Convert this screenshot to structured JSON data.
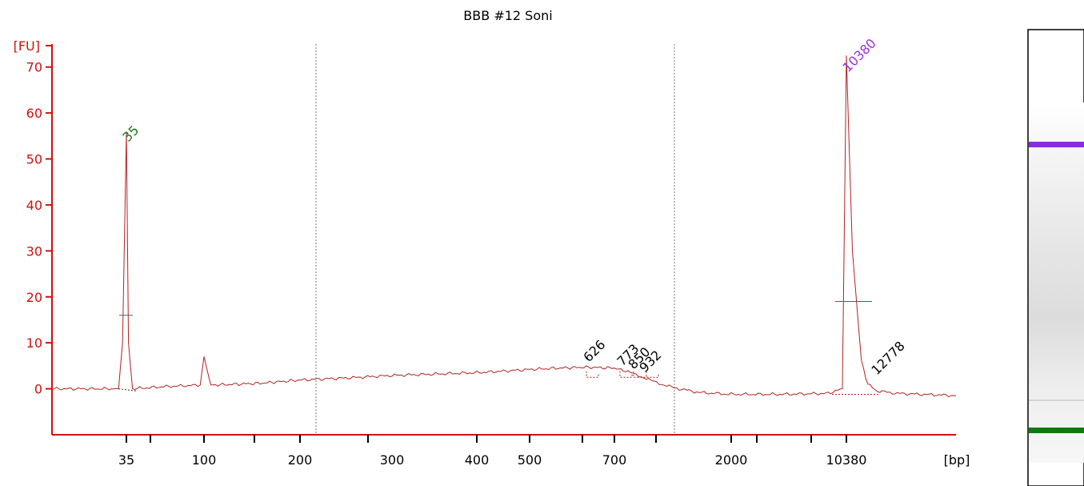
{
  "chart_data": {
    "type": "line",
    "title": "BBB #12 Soni",
    "ylabel": "[FU]",
    "xlabel": "[bp]",
    "ylim": [
      -10,
      75
    ],
    "yticks": [
      0,
      10,
      20,
      30,
      40,
      50,
      60,
      70
    ],
    "xticks": [
      "35",
      "100",
      "200",
      "300",
      "400",
      "500",
      "700",
      "2000",
      "10380"
    ],
    "series": [
      {
        "color": "#b22222",
        "x_units": "bp",
        "x": [
          20,
          33,
          34,
          35,
          36,
          38,
          60,
          95,
          100,
          105,
          150,
          200,
          250,
          300,
          400,
          500,
          560,
          626,
          700,
          773,
          850,
          932,
          1000,
          1200,
          1500,
          2000,
          4000,
          8000,
          9800,
          10380,
          11000,
          12000,
          12778,
          14000,
          17000,
          30000
        ],
        "y": [
          0,
          0,
          10,
          56,
          10,
          0,
          0.5,
          0.8,
          7,
          0.8,
          1.2,
          1.9,
          2.4,
          2.9,
          3.5,
          4.2,
          4.5,
          4.7,
          4.5,
          3.9,
          3.0,
          2.3,
          1.5,
          0.2,
          -0.8,
          -1.2,
          -1.2,
          -1.0,
          0,
          72.5,
          30,
          6,
          1,
          -0.5,
          -1.0,
          -1.5
        ]
      }
    ],
    "peaks": [
      {
        "label": "35",
        "color": "#1a7a1a"
      },
      {
        "label": "10380",
        "color": "#9b30e0"
      },
      {
        "label": "626",
        "color": "#000000"
      },
      {
        "label": "773",
        "color": "#000000"
      },
      {
        "label": "850",
        "color": "#000000"
      },
      {
        "label": "932",
        "color": "#000000"
      },
      {
        "label": "12778",
        "color": "#000000"
      }
    ],
    "grid": false,
    "gel_lane": {
      "bands": [
        {
          "label": "10380",
          "color": "#8a2be2"
        },
        {
          "label": "35",
          "color": "#0d7a0d"
        }
      ]
    }
  },
  "colors": {
    "axis": "#d01010",
    "trace": "#b22222",
    "marker_green": "#1a7a1a",
    "marker_purple": "#9b30e0"
  }
}
